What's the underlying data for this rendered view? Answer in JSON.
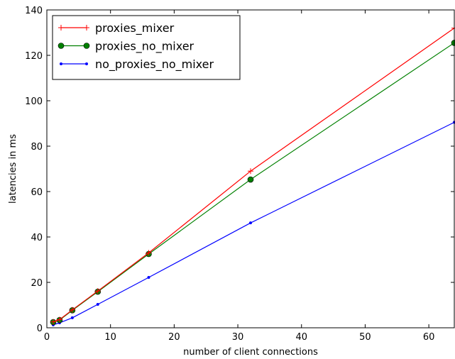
{
  "chart_data": {
    "type": "line",
    "xlabel": "number of client connections",
    "ylabel": "latencies in ms",
    "xlim": [
      0,
      64
    ],
    "ylim": [
      0,
      140
    ],
    "xticks": [
      0,
      10,
      20,
      30,
      40,
      50,
      60
    ],
    "yticks": [
      0,
      20,
      40,
      60,
      80,
      100,
      120,
      140
    ],
    "grid": false,
    "legend_position": "top-left",
    "series": [
      {
        "name": "proxies_mixer",
        "color": "#ff0000",
        "marker": "plus",
        "x": [
          1,
          2,
          4,
          8,
          16,
          32,
          64
        ],
        "y": [
          2.6,
          3.6,
          7.9,
          16.2,
          33.0,
          69.0,
          132.0
        ]
      },
      {
        "name": "proxies_no_mixer",
        "color": "#008000",
        "marker": "circle",
        "x": [
          1,
          2,
          4,
          8,
          16,
          32,
          64
        ],
        "y": [
          2.5,
          3.4,
          7.7,
          15.9,
          32.5,
          65.3,
          125.5
        ]
      },
      {
        "name": "no_proxies_no_mixer",
        "color": "#0000ff",
        "marker": "dot",
        "x": [
          1,
          2,
          4,
          8,
          16,
          32,
          64
        ],
        "y": [
          1.3,
          2.2,
          4.4,
          10.3,
          22.2,
          46.2,
          90.5
        ]
      }
    ]
  }
}
